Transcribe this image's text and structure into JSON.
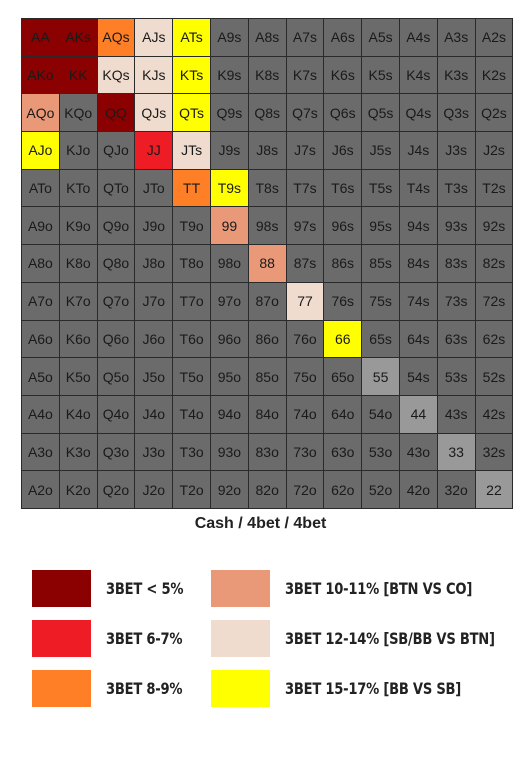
{
  "colors": {
    "grey": "#6b6b6b",
    "lightgrey": "#999999",
    "darkred": "#8b0000",
    "red": "#ee1c25",
    "orange": "#ff7f27",
    "salmon": "#e99878",
    "beige": "#efdccf",
    "yellow": "#ffff00"
  },
  "grid": [
    [
      [
        "AA",
        "darkred"
      ],
      [
        "AKs",
        "darkred"
      ],
      [
        "AQs",
        "orange"
      ],
      [
        "AJs",
        "beige"
      ],
      [
        "ATs",
        "yellow"
      ],
      [
        "A9s",
        "grey"
      ],
      [
        "A8s",
        "grey"
      ],
      [
        "A7s",
        "grey"
      ],
      [
        "A6s",
        "grey"
      ],
      [
        "A5s",
        "grey"
      ],
      [
        "A4s",
        "grey"
      ],
      [
        "A3s",
        "grey"
      ],
      [
        "A2s",
        "grey"
      ]
    ],
    [
      [
        "AKo",
        "darkred"
      ],
      [
        "KK",
        "darkred"
      ],
      [
        "KQs",
        "beige"
      ],
      [
        "KJs",
        "beige"
      ],
      [
        "KTs",
        "yellow"
      ],
      [
        "K9s",
        "grey"
      ],
      [
        "K8s",
        "grey"
      ],
      [
        "K7s",
        "grey"
      ],
      [
        "K6s",
        "grey"
      ],
      [
        "K5s",
        "grey"
      ],
      [
        "K4s",
        "grey"
      ],
      [
        "K3s",
        "grey"
      ],
      [
        "K2s",
        "grey"
      ]
    ],
    [
      [
        "AQo",
        "salmon"
      ],
      [
        "KQo",
        "grey"
      ],
      [
        "QQ",
        "darkred"
      ],
      [
        "QJs",
        "beige"
      ],
      [
        "QTs",
        "yellow"
      ],
      [
        "Q9s",
        "grey"
      ],
      [
        "Q8s",
        "grey"
      ],
      [
        "Q7s",
        "grey"
      ],
      [
        "Q6s",
        "grey"
      ],
      [
        "Q5s",
        "grey"
      ],
      [
        "Q4s",
        "grey"
      ],
      [
        "Q3s",
        "grey"
      ],
      [
        "Q2s",
        "grey"
      ]
    ],
    [
      [
        "AJo",
        "yellow"
      ],
      [
        "KJo",
        "grey"
      ],
      [
        "QJo",
        "grey"
      ],
      [
        "JJ",
        "red"
      ],
      [
        "JTs",
        "beige"
      ],
      [
        "J9s",
        "grey"
      ],
      [
        "J8s",
        "grey"
      ],
      [
        "J7s",
        "grey"
      ],
      [
        "J6s",
        "grey"
      ],
      [
        "J5s",
        "grey"
      ],
      [
        "J4s",
        "grey"
      ],
      [
        "J3s",
        "grey"
      ],
      [
        "J2s",
        "grey"
      ]
    ],
    [
      [
        "ATo",
        "grey"
      ],
      [
        "KTo",
        "grey"
      ],
      [
        "QTo",
        "grey"
      ],
      [
        "JTo",
        "grey"
      ],
      [
        "TT",
        "orange"
      ],
      [
        "T9s",
        "yellow"
      ],
      [
        "T8s",
        "grey"
      ],
      [
        "T7s",
        "grey"
      ],
      [
        "T6s",
        "grey"
      ],
      [
        "T5s",
        "grey"
      ],
      [
        "T4s",
        "grey"
      ],
      [
        "T3s",
        "grey"
      ],
      [
        "T2s",
        "grey"
      ]
    ],
    [
      [
        "A9o",
        "grey"
      ],
      [
        "K9o",
        "grey"
      ],
      [
        "Q9o",
        "grey"
      ],
      [
        "J9o",
        "grey"
      ],
      [
        "T9o",
        "grey"
      ],
      [
        "99",
        "salmon"
      ],
      [
        "98s",
        "grey"
      ],
      [
        "97s",
        "grey"
      ],
      [
        "96s",
        "grey"
      ],
      [
        "95s",
        "grey"
      ],
      [
        "94s",
        "grey"
      ],
      [
        "93s",
        "grey"
      ],
      [
        "92s",
        "grey"
      ]
    ],
    [
      [
        "A8o",
        "grey"
      ],
      [
        "K8o",
        "grey"
      ],
      [
        "Q8o",
        "grey"
      ],
      [
        "J8o",
        "grey"
      ],
      [
        "T8o",
        "grey"
      ],
      [
        "98o",
        "grey"
      ],
      [
        "88",
        "salmon"
      ],
      [
        "87s",
        "grey"
      ],
      [
        "86s",
        "grey"
      ],
      [
        "85s",
        "grey"
      ],
      [
        "84s",
        "grey"
      ],
      [
        "83s",
        "grey"
      ],
      [
        "82s",
        "grey"
      ]
    ],
    [
      [
        "A7o",
        "grey"
      ],
      [
        "K7o",
        "grey"
      ],
      [
        "Q7o",
        "grey"
      ],
      [
        "J7o",
        "grey"
      ],
      [
        "T7o",
        "grey"
      ],
      [
        "97o",
        "grey"
      ],
      [
        "87o",
        "grey"
      ],
      [
        "77",
        "beige"
      ],
      [
        "76s",
        "grey"
      ],
      [
        "75s",
        "grey"
      ],
      [
        "74s",
        "grey"
      ],
      [
        "73s",
        "grey"
      ],
      [
        "72s",
        "grey"
      ]
    ],
    [
      [
        "A6o",
        "grey"
      ],
      [
        "K6o",
        "grey"
      ],
      [
        "Q6o",
        "grey"
      ],
      [
        "J6o",
        "grey"
      ],
      [
        "T6o",
        "grey"
      ],
      [
        "96o",
        "grey"
      ],
      [
        "86o",
        "grey"
      ],
      [
        "76o",
        "grey"
      ],
      [
        "66",
        "yellow"
      ],
      [
        "65s",
        "grey"
      ],
      [
        "64s",
        "grey"
      ],
      [
        "63s",
        "grey"
      ],
      [
        "62s",
        "grey"
      ]
    ],
    [
      [
        "A5o",
        "grey"
      ],
      [
        "K5o",
        "grey"
      ],
      [
        "Q5o",
        "grey"
      ],
      [
        "J5o",
        "grey"
      ],
      [
        "T5o",
        "grey"
      ],
      [
        "95o",
        "grey"
      ],
      [
        "85o",
        "grey"
      ],
      [
        "75o",
        "grey"
      ],
      [
        "65o",
        "grey"
      ],
      [
        "55",
        "lightgrey"
      ],
      [
        "54s",
        "grey"
      ],
      [
        "53s",
        "grey"
      ],
      [
        "52s",
        "grey"
      ]
    ],
    [
      [
        "A4o",
        "grey"
      ],
      [
        "K4o",
        "grey"
      ],
      [
        "Q4o",
        "grey"
      ],
      [
        "J4o",
        "grey"
      ],
      [
        "T4o",
        "grey"
      ],
      [
        "94o",
        "grey"
      ],
      [
        "84o",
        "grey"
      ],
      [
        "74o",
        "grey"
      ],
      [
        "64o",
        "grey"
      ],
      [
        "54o",
        "grey"
      ],
      [
        "44",
        "lightgrey"
      ],
      [
        "43s",
        "grey"
      ],
      [
        "42s",
        "grey"
      ]
    ],
    [
      [
        "A3o",
        "grey"
      ],
      [
        "K3o",
        "grey"
      ],
      [
        "Q3o",
        "grey"
      ],
      [
        "J3o",
        "grey"
      ],
      [
        "T3o",
        "grey"
      ],
      [
        "93o",
        "grey"
      ],
      [
        "83o",
        "grey"
      ],
      [
        "73o",
        "grey"
      ],
      [
        "63o",
        "grey"
      ],
      [
        "53o",
        "grey"
      ],
      [
        "43o",
        "grey"
      ],
      [
        "33",
        "lightgrey"
      ],
      [
        "32s",
        "grey"
      ]
    ],
    [
      [
        "A2o",
        "grey"
      ],
      [
        "K2o",
        "grey"
      ],
      [
        "Q2o",
        "grey"
      ],
      [
        "J2o",
        "grey"
      ],
      [
        "T2o",
        "grey"
      ],
      [
        "92o",
        "grey"
      ],
      [
        "82o",
        "grey"
      ],
      [
        "72o",
        "grey"
      ],
      [
        "62o",
        "grey"
      ],
      [
        "52o",
        "grey"
      ],
      [
        "42o",
        "grey"
      ],
      [
        "32o",
        "grey"
      ],
      [
        "22",
        "lightgrey"
      ]
    ]
  ],
  "caption": "Cash / 4bet / 4bet",
  "legend": [
    {
      "label": "3BET < 5%",
      "color": "darkred"
    },
    {
      "label": "3BET 6-7%",
      "color": "red"
    },
    {
      "label": "3BET 8-9%",
      "color": "orange"
    },
    {
      "label": "3BET 10-11% [BTN VS CO]",
      "color": "salmon"
    },
    {
      "label": "3BET 12-14% [SB/BB VS BTN]",
      "color": "beige"
    },
    {
      "label": "3BET 15-17% [BB VS SB]",
      "color": "yellow"
    }
  ]
}
